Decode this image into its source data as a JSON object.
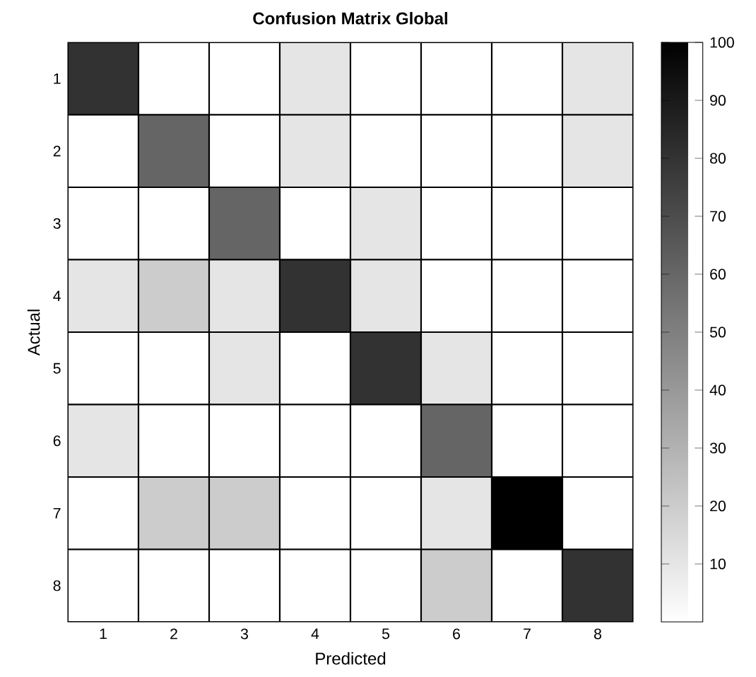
{
  "chart_data": {
    "type": "heatmap",
    "title": "Confusion Matrix Global",
    "xlabel": "Predicted",
    "ylabel": "Actual",
    "categories": [
      "1",
      "2",
      "3",
      "4",
      "5",
      "6",
      "7",
      "8"
    ],
    "y_categories": [
      "1",
      "2",
      "3",
      "4",
      "5",
      "6",
      "7",
      "8"
    ],
    "cells": [
      [
        80,
        0,
        0,
        10,
        0,
        0,
        0,
        10
      ],
      [
        0,
        60,
        0,
        10,
        0,
        0,
        0,
        10
      ],
      [
        0,
        0,
        60,
        0,
        10,
        0,
        0,
        0
      ],
      [
        10,
        20,
        10,
        80,
        10,
        0,
        0,
        0
      ],
      [
        0,
        0,
        10,
        0,
        80,
        10,
        0,
        0
      ],
      [
        10,
        0,
        0,
        0,
        0,
        60,
        0,
        0
      ],
      [
        0,
        20,
        20,
        0,
        0,
        10,
        100,
        0
      ],
      [
        0,
        0,
        0,
        0,
        0,
        20,
        0,
        80
      ]
    ],
    "clim": [
      0,
      100
    ],
    "cticks": [
      10,
      20,
      30,
      40,
      50,
      60,
      70,
      80,
      90,
      100
    ]
  }
}
